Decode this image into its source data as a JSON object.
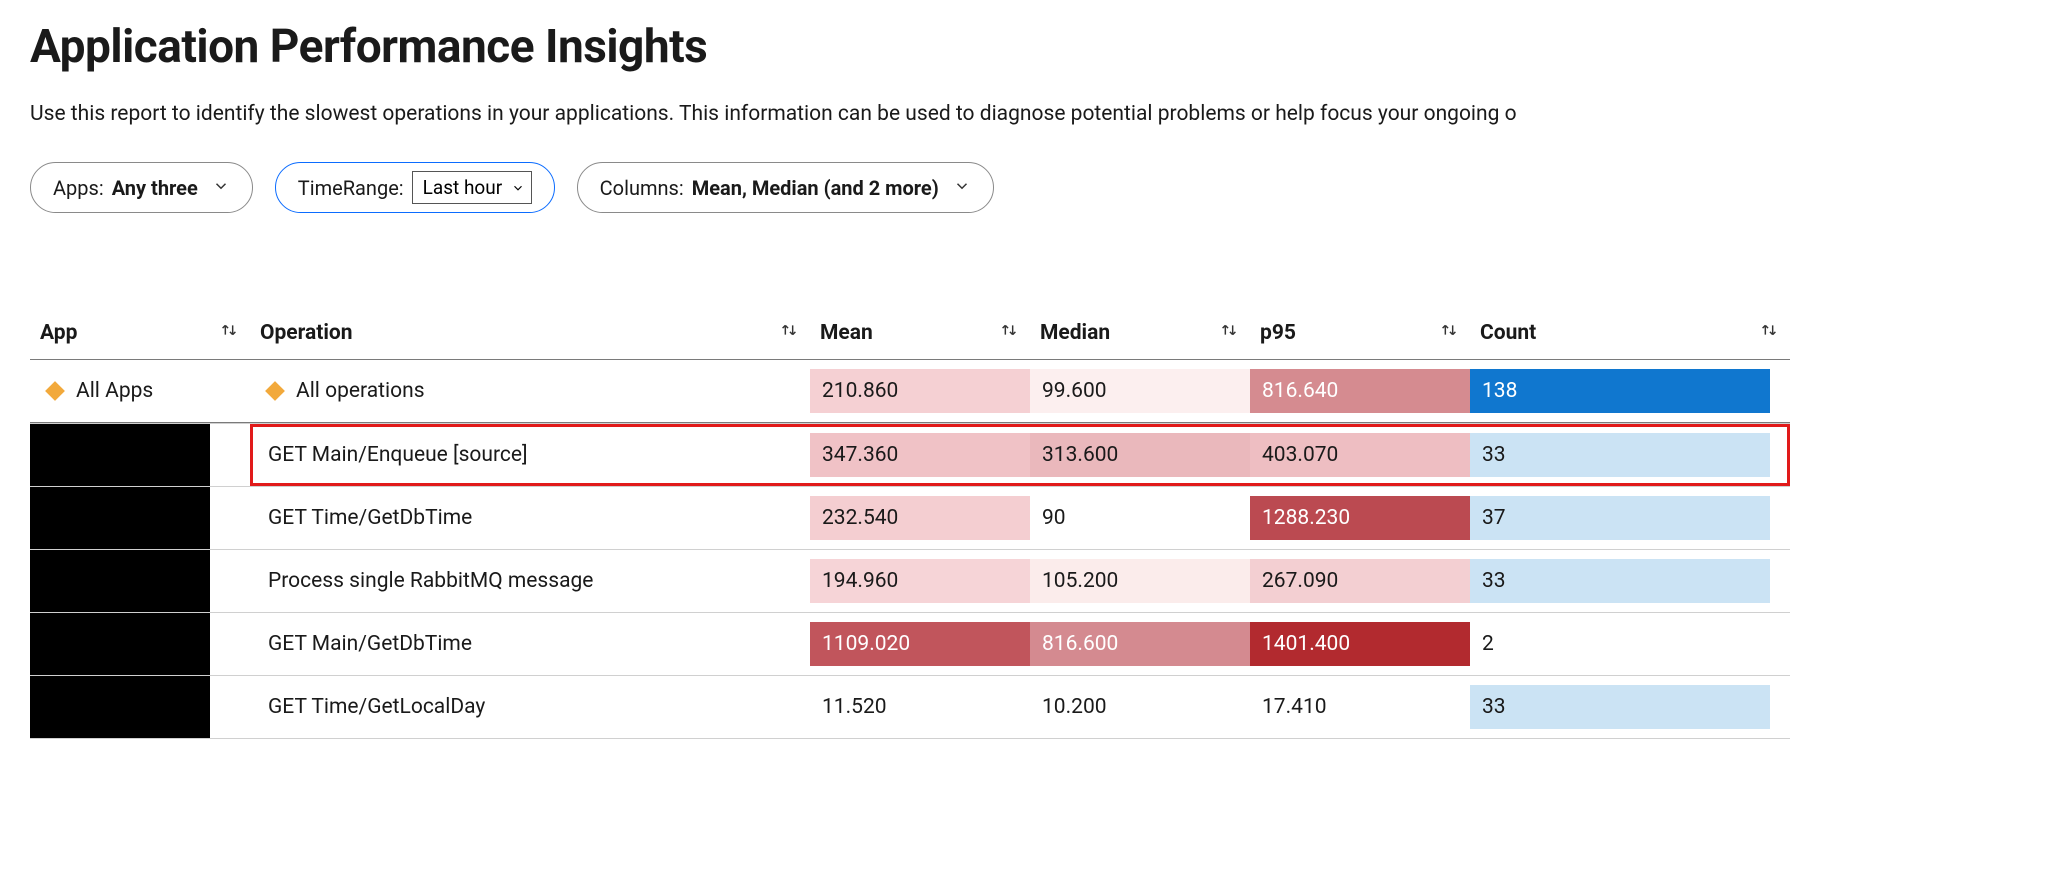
{
  "header": {
    "title": "Application Performance Insights",
    "description": "Use this report to identify the slowest operations in your applications. This information can be used to diagnose potential problems or help focus your ongoing o"
  },
  "filters": {
    "apps": {
      "label": "Apps:",
      "value": "Any three"
    },
    "timerange": {
      "label": "TimeRange:",
      "selected": "Last hour",
      "options": [
        "Last hour"
      ]
    },
    "columns": {
      "label": "Columns:",
      "value": "Mean, Median (and 2 more)"
    }
  },
  "table": {
    "columns": {
      "app": "App",
      "operation": "Operation",
      "mean": "Mean",
      "median": "Median",
      "p95": "p95",
      "count": "Count"
    },
    "rows": [
      {
        "app": "All Apps",
        "app_diamond": true,
        "operation": "All operations",
        "op_diamond": true,
        "mean": "210.860",
        "mean_bg": "#f5d0d3",
        "median": "99.600",
        "median_bg": "#fcefef",
        "p95": "816.640",
        "p95_bg": "#d58b90",
        "p95_fg": "#ffffff",
        "count": "138",
        "count_bg": "#1077cf",
        "count_fg": "#ffffff",
        "count_width": 300,
        "highlight": false,
        "first": true
      },
      {
        "app_block": true,
        "operation": "GET Main/Enqueue [source]",
        "mean": "347.360",
        "mean_bg": "#f0c2c6",
        "median": "313.600",
        "median_bg": "#eab8bc",
        "p95": "403.070",
        "p95_bg": "#eebec2",
        "count": "33",
        "count_bg": "#cbe3f4",
        "count_width": 300,
        "highlight": true
      },
      {
        "app_block": true,
        "operation": "GET Time/GetDbTime",
        "mean": "232.540",
        "mean_bg": "#f4ced1",
        "median": "90",
        "median_bg": "#ffffff",
        "p95": "1288.230",
        "p95_bg": "#bb4a51",
        "p95_fg": "#ffffff",
        "count": "37",
        "count_bg": "#cbe3f4",
        "count_width": 300
      },
      {
        "app_block": true,
        "operation": "Process single RabbitMQ message",
        "mean": "194.960",
        "mean_bg": "#f6d4d7",
        "median": "105.200",
        "median_bg": "#fbeceb",
        "p95": "267.090",
        "p95_bg": "#f3cfd2",
        "count": "33",
        "count_bg": "#cbe3f4",
        "count_width": 300
      },
      {
        "app_block": true,
        "operation": "GET Main/GetDbTime",
        "mean": "1109.020",
        "mean_bg": "#c1555c",
        "mean_fg": "#ffffff",
        "median": "816.600",
        "median_bg": "#d48a90",
        "median_fg": "#ffffff",
        "p95": "1401.400",
        "p95_bg": "#b22a2f",
        "p95_fg": "#ffffff",
        "count": "2",
        "count_bg": "#ffffff",
        "count_width": 40
      },
      {
        "app_block": true,
        "operation": "GET Time/GetLocalDay",
        "mean": "11.520",
        "mean_bg": "#ffffff",
        "median": "10.200",
        "median_bg": "#ffffff",
        "p95": "17.410",
        "p95_bg": "#ffffff",
        "count": "33",
        "count_bg": "#cbe3f4",
        "count_width": 300
      }
    ]
  }
}
